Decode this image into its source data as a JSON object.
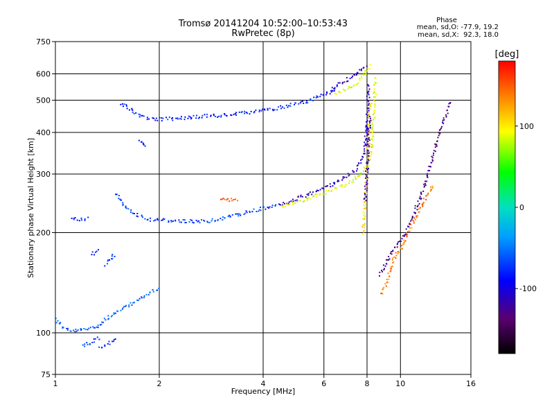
{
  "chart_data": {
    "type": "scatter",
    "title": "Tromsø 20141204 10:52:00–10:53:43",
    "subtitle": "RwPretec (8p)",
    "xlabel": "Frequency [MHz]",
    "ylabel": "Stationary phase Virtual Height [km]",
    "xscale": "log",
    "yscale": "log",
    "xlim": [
      1,
      16
    ],
    "ylim": [
      75,
      750
    ],
    "grid": true,
    "x_ticks": [
      1,
      2,
      4,
      6,
      8,
      10,
      16
    ],
    "x_tick_labels": [
      "1",
      "2",
      "4",
      "6",
      "8",
      "10",
      "16"
    ],
    "y_ticks": [
      75,
      100,
      200,
      300,
      400,
      500,
      600,
      750
    ],
    "y_tick_labels": [
      "75",
      "100",
      "200",
      "300",
      "400",
      "500",
      "600",
      "750"
    ],
    "phase_stats": {
      "heading": "Phase",
      "line_o": "mean, sd,O: -77.9, 19.2",
      "line_x": "mean, sd,X:  92.3, 18.0"
    },
    "colorbar": {
      "label": "[deg]",
      "range": [
        -180,
        180
      ],
      "ticks": [
        100,
        0,
        -100
      ],
      "tick_labels": [
        "100",
        "0",
        "-100"
      ]
    },
    "traces": [
      {
        "x": [
          1.0,
          1.05,
          1.1,
          1.2,
          1.3,
          1.35,
          1.4,
          1.5,
          1.6,
          1.7,
          1.8,
          1.9,
          2.0
        ],
        "y": [
          110,
          104,
          101,
          102,
          104,
          106,
          110,
          115,
          119,
          124,
          128,
          133,
          137
        ],
        "phase": -60
      },
      {
        "x": [
          1.2,
          1.25,
          1.3,
          1.35
        ],
        "y": [
          91,
          93,
          95,
          97
        ],
        "phase": -70
      },
      {
        "x": [
          1.35,
          1.4,
          1.45,
          1.5
        ],
        "y": [
          90,
          92,
          94,
          97
        ],
        "phase": -80
      },
      {
        "x": [
          1.28,
          1.3,
          1.33
        ],
        "y": [
          170,
          175,
          180
        ],
        "phase": -90
      },
      {
        "x": [
          1.4,
          1.43,
          1.45,
          1.5
        ],
        "y": [
          160,
          164,
          168,
          172
        ],
        "phase": -80
      },
      {
        "x": [
          1.12,
          1.15,
          1.2,
          1.25
        ],
        "y": [
          219,
          220,
          219,
          220
        ],
        "phase": -70
      },
      {
        "x": [
          1.5,
          1.6,
          1.7,
          1.8,
          1.9,
          2.0,
          2.2,
          2.5,
          2.8,
          3.0,
          3.3,
          3.6,
          4.0,
          4.5
        ],
        "y": [
          260,
          238,
          228,
          222,
          219,
          218,
          217,
          216,
          217,
          220,
          225,
          230,
          236,
          243
        ],
        "phase": -70
      },
      {
        "x": [
          4.5,
          5.0,
          5.5,
          6.0,
          6.5,
          7.0,
          7.4,
          7.7,
          7.9,
          8.0,
          8.1
        ],
        "y": [
          243,
          252,
          262,
          272,
          283,
          295,
          310,
          330,
          360,
          420,
          560
        ],
        "phase": -110
      },
      {
        "x": [
          4.5,
          5.0,
          5.5,
          6.0,
          6.5,
          7.0,
          7.5,
          7.8,
          8.1,
          8.3,
          8.4,
          8.45
        ],
        "y": [
          240,
          247,
          255,
          262,
          271,
          280,
          292,
          305,
          325,
          380,
          480,
          590
        ],
        "phase": 90
      },
      {
        "x": [
          3.0,
          3.2,
          3.4
        ],
        "y": [
          254,
          251,
          249
        ],
        "phase": 150
      },
      {
        "x": [
          1.55,
          1.6,
          1.65,
          1.7,
          1.8,
          1.9,
          2.0,
          2.2,
          2.5,
          2.8,
          3.0,
          3.4,
          3.8,
          4.2,
          4.6,
          5.0,
          5.5,
          6.0,
          6.5
        ],
        "y": [
          490,
          480,
          470,
          455,
          445,
          440,
          438,
          440,
          445,
          448,
          450,
          455,
          462,
          470,
          478,
          488,
          500,
          520,
          540
        ],
        "phase": -80
      },
      {
        "x": [
          6.3,
          6.6,
          7.0,
          7.3,
          7.6,
          7.8,
          8.0
        ],
        "y": [
          535,
          555,
          575,
          595,
          610,
          620,
          630
        ],
        "phase": -110
      },
      {
        "x": [
          6.5,
          7.0,
          7.5,
          7.8,
          8.0,
          8.2
        ],
        "y": [
          520,
          540,
          565,
          590,
          615,
          640
        ],
        "phase": 90
      },
      {
        "x": [
          7.8,
          8.0,
          8.1,
          8.2
        ],
        "y": [
          200,
          300,
          400,
          500
        ],
        "phase": 100
      },
      {
        "x": [
          7.9,
          8.05,
          8.15
        ],
        "y": [
          250,
          350,
          450
        ],
        "phase": -120
      },
      {
        "x": [
          1.75,
          1.8,
          1.85
        ],
        "y": [
          380,
          370,
          365
        ],
        "phase": -80
      },
      {
        "x": [
          8.7,
          9.0,
          9.3,
          9.6,
          10.0,
          10.4,
          11.0,
          12.0,
          13.0,
          14.0
        ],
        "y": [
          150,
          160,
          170,
          180,
          190,
          200,
          230,
          300,
          400,
          500
        ],
        "phase": -130
      },
      {
        "x": [
          8.8,
          9.2,
          9.5,
          10.2,
          10.8,
          11.5,
          12.5
        ],
        "y": [
          130,
          145,
          165,
          185,
          210,
          240,
          280
        ],
        "phase": 140
      }
    ]
  }
}
